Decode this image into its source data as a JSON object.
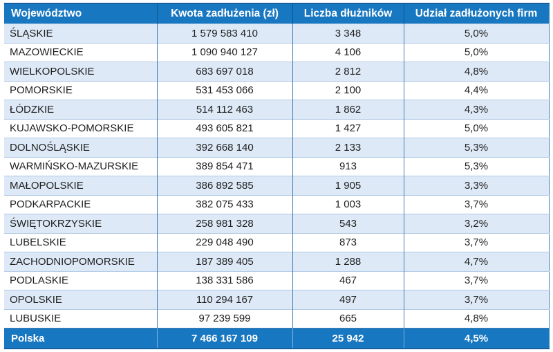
{
  "table": {
    "columns": [
      "Województwo",
      "Kwota zadłużenia (zł)",
      "Liczba dłużników",
      "Udział zadłużonych firm"
    ],
    "rows": [
      [
        "ŚLĄSKIE",
        "1 579 583 410",
        "3 348",
        "5,0%"
      ],
      [
        "MAZOWIECKIE",
        "1 090 940 127",
        "4 106",
        "5,0%"
      ],
      [
        "WIELKOPOLSKIE",
        "683 697 018",
        "2 812",
        "4,8%"
      ],
      [
        "POMORSKIE",
        "531 453 066",
        "2 100",
        "4,4%"
      ],
      [
        "ŁÓDZKIE",
        "514 112 463",
        "1 862",
        "4,3%"
      ],
      [
        "KUJAWSKO-POMORSKIE",
        "493 605 821",
        "1 427",
        "5,0%"
      ],
      [
        "DOLNOŚLĄSKIE",
        "392 668 140",
        "2 133",
        "5,3%"
      ],
      [
        "WARMIŃSKO-MAZURSKIE",
        "389 854 471",
        "913",
        "5,3%"
      ],
      [
        "MAŁOPOLSKIE",
        "386 892 585",
        "1 905",
        "3,3%"
      ],
      [
        "PODKARPACKIE",
        "382 075 433",
        "1 003",
        "3,7%"
      ],
      [
        "ŚWIĘTOKRZYSKIE",
        "258 981 328",
        "543",
        "3,2%"
      ],
      [
        "LUBELSKIE",
        "229 048 490",
        "873",
        "3,7%"
      ],
      [
        "ZACHODNIOPOMORSKIE",
        "187 389 405",
        "1 288",
        "4,7%"
      ],
      [
        "PODLASKIE",
        "138 331 586",
        "467",
        "3,7%"
      ],
      [
        "OPOLSKIE",
        "110 294 167",
        "497",
        "3,7%"
      ],
      [
        "LUBUSKIE",
        "97 239 599",
        "665",
        "4,8%"
      ]
    ],
    "footer": [
      "Polska",
      "7 466 167 109",
      "25 942",
      "4,5%"
    ]
  },
  "chart_data": {
    "type": "table",
    "title": "",
    "columns": [
      "Województwo",
      "Kwota zadłużenia (zł)",
      "Liczba dłużników",
      "Udział zadłużonych firm"
    ],
    "rows": [
      {
        "wojewodztwo": "ŚLĄSKIE",
        "kwota_zadluzenia_zl": 1579583410,
        "liczba_dluznikow": 3348,
        "udzial_zadluzonych_firm_pct": 5.0
      },
      {
        "wojewodztwo": "MAZOWIECKIE",
        "kwota_zadluzenia_zl": 1090940127,
        "liczba_dluznikow": 4106,
        "udzial_zadluzonych_firm_pct": 5.0
      },
      {
        "wojewodztwo": "WIELKOPOLSKIE",
        "kwota_zadluzenia_zl": 683697018,
        "liczba_dluznikow": 2812,
        "udzial_zadluzonych_firm_pct": 4.8
      },
      {
        "wojewodztwo": "POMORSKIE",
        "kwota_zadluzenia_zl": 531453066,
        "liczba_dluznikow": 2100,
        "udzial_zadluzonych_firm_pct": 4.4
      },
      {
        "wojewodztwo": "ŁÓDZKIE",
        "kwota_zadluzenia_zl": 514112463,
        "liczba_dluznikow": 1862,
        "udzial_zadluzonych_firm_pct": 4.3
      },
      {
        "wojewodztwo": "KUJAWSKO-POMORSKIE",
        "kwota_zadluzenia_zl": 493605821,
        "liczba_dluznikow": 1427,
        "udzial_zadluzonych_firm_pct": 5.0
      },
      {
        "wojewodztwo": "DOLNOŚLĄSKIE",
        "kwota_zadluzenia_zl": 392668140,
        "liczba_dluznikow": 2133,
        "udzial_zadluzonych_firm_pct": 5.3
      },
      {
        "wojewodztwo": "WARMIŃSKO-MAZURSKIE",
        "kwota_zadluzenia_zl": 389854471,
        "liczba_dluznikow": 913,
        "udzial_zadluzonych_firm_pct": 5.3
      },
      {
        "wojewodztwo": "MAŁOPOLSKIE",
        "kwota_zadluzenia_zl": 386892585,
        "liczba_dluznikow": 1905,
        "udzial_zadluzonych_firm_pct": 3.3
      },
      {
        "wojewodztwo": "PODKARPACKIE",
        "kwota_zadluzenia_zl": 382075433,
        "liczba_dluznikow": 1003,
        "udzial_zadluzonych_firm_pct": 3.7
      },
      {
        "wojewodztwo": "ŚWIĘTOKRZYSKIE",
        "kwota_zadluzenia_zl": 258981328,
        "liczba_dluznikow": 543,
        "udzial_zadluzonych_firm_pct": 3.2
      },
      {
        "wojewodztwo": "LUBELSKIE",
        "kwota_zadluzenia_zl": 229048490,
        "liczba_dluznikow": 873,
        "udzial_zadluzonych_firm_pct": 3.7
      },
      {
        "wojewodztwo": "ZACHODNIOPOMORSKIE",
        "kwota_zadluzenia_zl": 187389405,
        "liczba_dluznikow": 1288,
        "udzial_zadluzonych_firm_pct": 4.7
      },
      {
        "wojewodztwo": "PODLASKIE",
        "kwota_zadluzenia_zl": 138331586,
        "liczba_dluznikow": 467,
        "udzial_zadluzonych_firm_pct": 3.7
      },
      {
        "wojewodztwo": "OPOLSKIE",
        "kwota_zadluzenia_zl": 110294167,
        "liczba_dluznikow": 497,
        "udzial_zadluzonych_firm_pct": 3.7
      },
      {
        "wojewodztwo": "LUBUSKIE",
        "kwota_zadluzenia_zl": 97239599,
        "liczba_dluznikow": 665,
        "udzial_zadluzonych_firm_pct": 4.8
      }
    ],
    "total_row": {
      "wojewodztwo": "Polska",
      "kwota_zadluzenia_zl": 7466167109,
      "liczba_dluznikow": 25942,
      "udzial_zadluzonych_firm_pct": 4.5
    },
    "number_format": "space-grouped, comma decimal (pl-PL)"
  },
  "colors": {
    "header_bg": "#1877c1",
    "header_text": "#ffffff",
    "stripe_row_bg": "#dde9f6",
    "plain_row_bg": "#ffffff",
    "body_text": "#1f1f1f",
    "outer_border": "#155d9e",
    "vertical_divider": "#447eb5",
    "horizontal_divider": "#b0c8e4",
    "header_divider": "#0d5596",
    "footer_divider": "#7fb2e0"
  }
}
